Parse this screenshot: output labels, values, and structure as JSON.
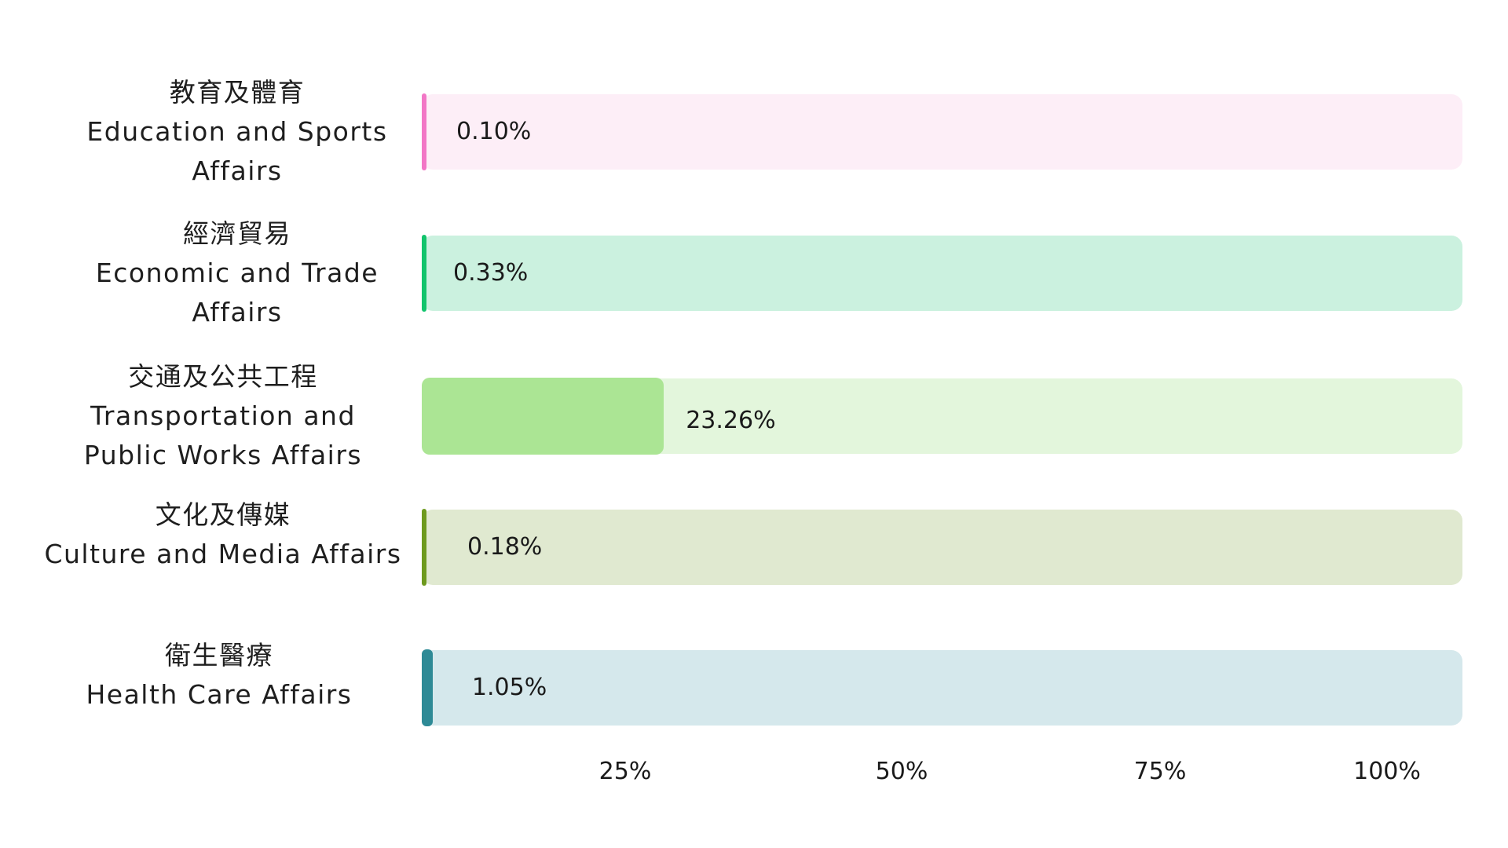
{
  "chart_data": {
    "type": "bar",
    "orientation": "horizontal",
    "categories": [
      {
        "zh": "教育及體育",
        "en": "Education and Sports Affairs"
      },
      {
        "zh": "經濟貿易",
        "en": "Economic and Trade Affairs"
      },
      {
        "zh": "交通及公共工程",
        "en": "Transportation and Public Works Affairs"
      },
      {
        "zh": "文化及傳媒",
        "en": "Culture and Media Affairs"
      },
      {
        "zh": "衛生醫療",
        "en": "Health Care Affairs"
      }
    ],
    "values": [
      0.1,
      0.33,
      23.26,
      0.18,
      1.05
    ],
    "value_labels": [
      "0.10%",
      "0.33%",
      "23.26%",
      "0.18%",
      "1.05%"
    ],
    "xlim": [
      0,
      100
    ],
    "xticks": [
      25,
      50,
      75,
      100
    ],
    "xtick_labels": [
      "25%",
      "50%",
      "75%",
      "100%"
    ],
    "grid": false,
    "colors": {
      "fill": [
        "#f277c6",
        "#12c46c",
        "#abe594",
        "#6e9a1e",
        "#2e8a96"
      ],
      "track": [
        "#fdeef7",
        "#cbf1df",
        "#e3f6dc",
        "#e0e9d0",
        "#d5e8ec"
      ]
    }
  }
}
